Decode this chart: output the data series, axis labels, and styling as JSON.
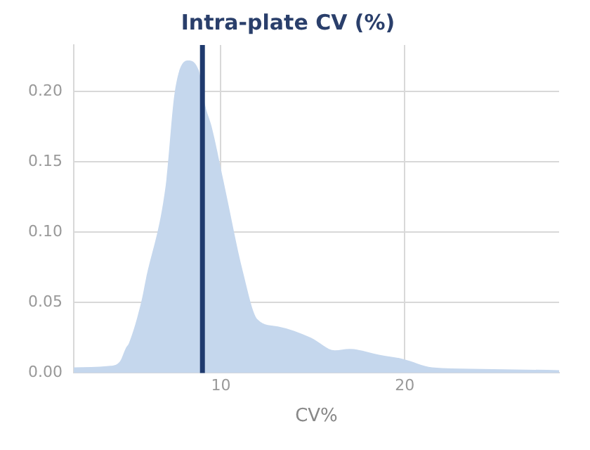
{
  "chart_data": {
    "type": "area",
    "title": "Intra-plate CV (%)",
    "xlabel": "CV%",
    "series": [
      {
        "color": "#c5d7ed",
        "x": [
          2,
          3.9,
          4.5,
          4.85,
          5.0,
          5.7,
          5.9,
          7.0,
          7.5,
          8.2,
          8.8,
          9.15,
          9.5,
          10.2,
          11.2,
          12.0,
          13.1,
          14.9,
          16.2,
          17.0,
          18.6,
          19.9,
          21.5,
          23.6,
          28.4
        ],
        "values": [
          0.004,
          0.005,
          0.008,
          0.018,
          0.021,
          0.052,
          0.065,
          0.133,
          0.2,
          0.222,
          0.215,
          0.19,
          0.175,
          0.133,
          0.072,
          0.038,
          0.033,
          0.025,
          0.016,
          0.017,
          0.013,
          0.01,
          0.004,
          0.003,
          0.002
        ]
      }
    ],
    "xlim": [
      2,
      28.4
    ],
    "xticks": [
      10,
      20
    ],
    "ylim": [
      0,
      0.233
    ],
    "yticks": [
      {
        "value": 0,
        "label": "0.00"
      },
      {
        "value": 0.05,
        "label": "0.05"
      },
      {
        "value": 0.1,
        "label": "0.10"
      },
      {
        "value": 0.15,
        "label": "0.15"
      },
      {
        "value": 0.2,
        "label": "0.20"
      }
    ],
    "ref_lines": [
      {
        "axis": "x",
        "value": 9.0,
        "color": "#1f3a6e"
      }
    ],
    "grid": true,
    "legend": false
  }
}
